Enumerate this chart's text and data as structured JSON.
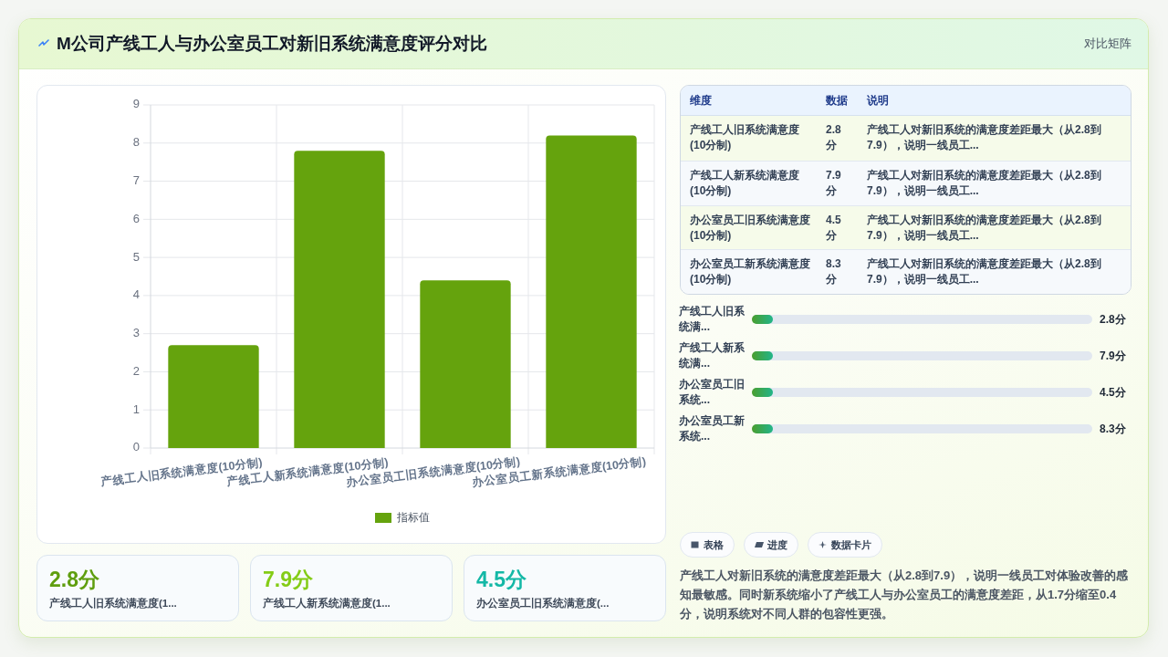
{
  "chart_data": [
    {
      "type": "other",
      "title": "M公司产线工人与办公室员工对新旧系统满意度评分对比",
      "subtitle": "对比矩阵"
    },
    {
      "type": "bar",
      "categories": [
        "产线工人旧系统满意度(10分制)",
        "产线工人新系统满意度(10分制)",
        "办公室员工旧系统满意度(10分制)",
        "办公室员工新系统满意度(10分制)"
      ],
      "series": [
        {
          "name": "指标值",
          "color": "#65a30d",
          "values": [
            2.7,
            7.8,
            4.4,
            8.2
          ]
        }
      ],
      "ylim": [
        0,
        9
      ],
      "yticks": [
        0,
        1,
        2,
        3,
        4,
        5,
        6,
        7,
        8,
        9
      ],
      "grid": true,
      "legend": "bottom"
    },
    {
      "type": "other",
      "categories": [
        "维度",
        "数据",
        "说明"
      ],
      "cell_labels": [
        [
          "产线工人旧系统满意度(10分制)",
          "2.8分",
          "产线工人对新旧系统的满意度差距最大（从2.8到7.9），说明一线员工..."
        ],
        [
          "产线工人新系统满意度(10分制)",
          "7.9分",
          "产线工人对新旧系统的满意度差距最大（从2.8到7.9），说明一线员工..."
        ],
        [
          "办公室员工旧系统满意度(10分制)",
          "4.5分",
          "产线工人对新旧系统的满意度差距最大（从2.8到7.9），说明一线员工..."
        ],
        [
          "办公室员工新系统满意度(10分制)",
          "8.3分",
          "产线工人对新旧系统的满意度差距最大（从2.8到7.9），说明一线员工..."
        ]
      ]
    },
    {
      "type": "other",
      "categories": [
        "产线工人旧系统满...",
        "产线工人新系统满...",
        "办公室员工旧系统...",
        "办公室员工新系统..."
      ],
      "value_labels": [
        "2.8分",
        "7.9分",
        "4.5分",
        "8.3分"
      ]
    },
    {
      "type": "other",
      "categories": [
        "产线工人旧系统满意度(1...",
        "产线工人新系统满意度(1...",
        "办公室员工旧系统满意度(..."
      ],
      "value_labels": [
        "2.8分",
        "7.9分",
        "4.5分"
      ]
    },
    {
      "type": "other",
      "categories": [
        "表格",
        "进度",
        "数据卡片"
      ],
      "annotations": [
        "产线工人对新旧系统的满意度差距最大（从2.8到7.9），说明一线员工对体验改善的感知最敏感。同时新系统缩小了产线工人与办公室员工的满意度差距，从1.7分缩至0.4分，说明系统对不同人群的包容性更强。"
      ]
    }
  ]
}
